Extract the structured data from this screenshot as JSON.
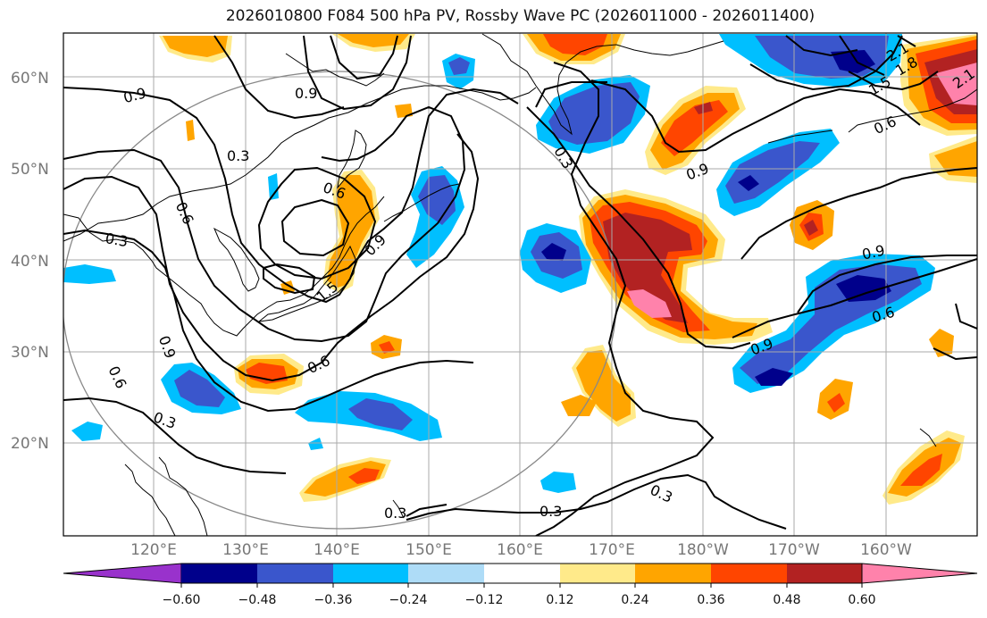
{
  "title": "2026010800 F084 500 hPa PV, Rossby Wave PC (2026011000 - 2026011400)",
  "lat_labels": [
    "60°N",
    "50°N",
    "40°N",
    "30°N",
    "20°N"
  ],
  "lon_labels": [
    "120°E",
    "130°E",
    "140°E",
    "150°E",
    "160°E",
    "170°E",
    "180°W",
    "170°W",
    "160°W"
  ],
  "contour_labels": [
    "0.9",
    "0.6",
    "0.3",
    "0.9",
    "0.6",
    "0.3",
    "0.9",
    "0.6",
    "0.3",
    "0.6",
    "0.9",
    "0.3",
    "0.9",
    "0.9",
    "0.6",
    "0.9",
    "0.6",
    "2.1",
    "1.8",
    "1.5",
    "2.1",
    "0.3",
    "0.3",
    "0.3",
    "1.5"
  ],
  "colorbar": {
    "ticks": [
      "−0.60",
      "−0.48",
      "−0.36",
      "−0.24",
      "−0.12",
      "0.12",
      "0.24",
      "0.36",
      "0.48",
      "0.60"
    ],
    "colors": [
      "#9932cc",
      "#00008b",
      "#3a56cc",
      "#00bfff",
      "#aedcf7",
      "#ffffff",
      "#ffea8a",
      "#ffa500",
      "#ff4500",
      "#b22222",
      "#ff82ab"
    ]
  }
}
